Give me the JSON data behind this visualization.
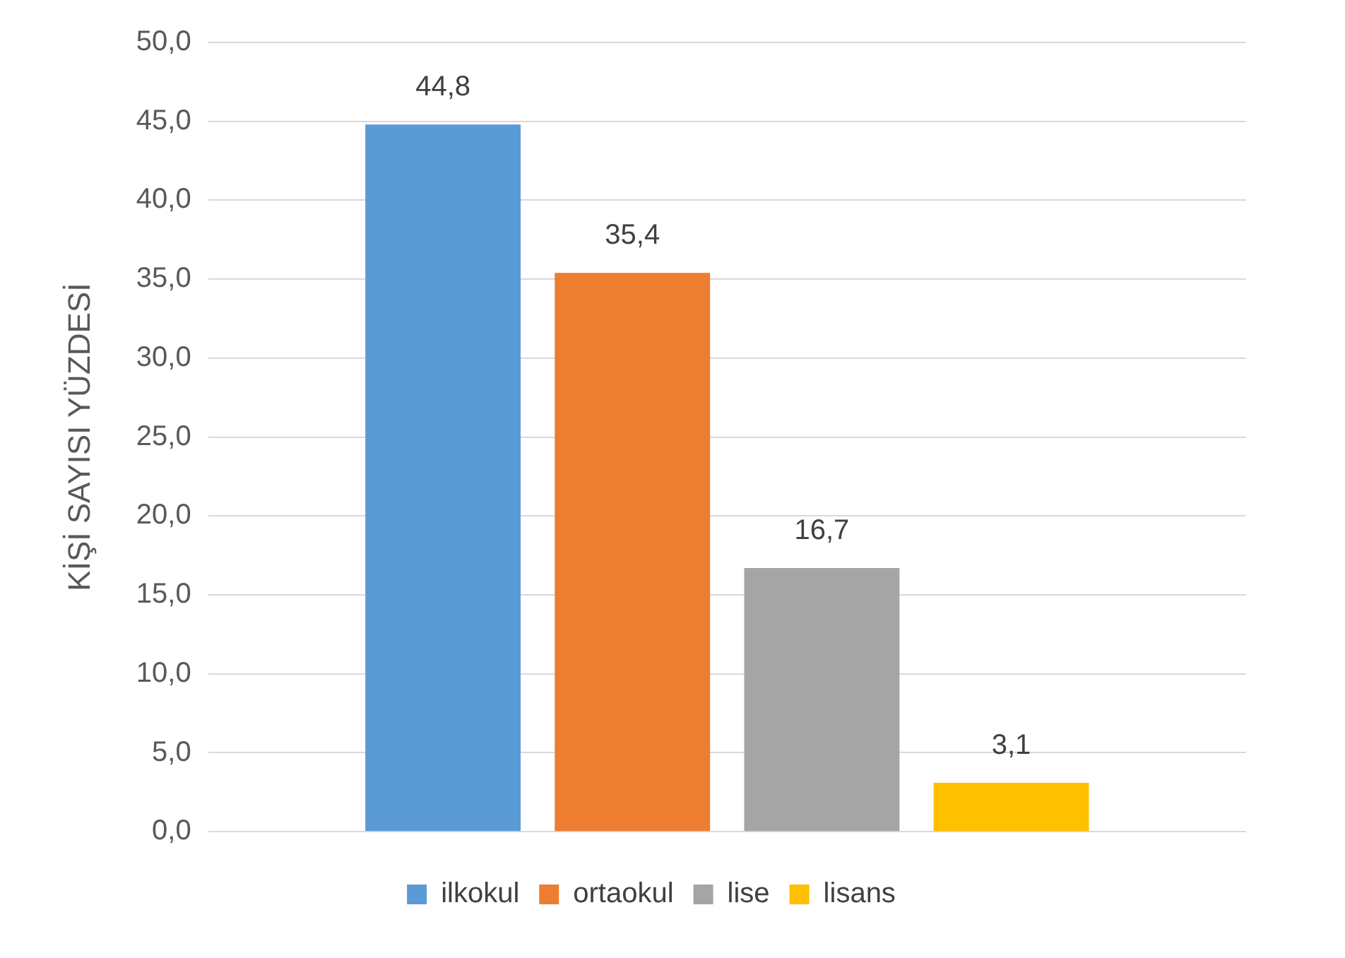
{
  "chart_data": {
    "type": "bar",
    "ylabel": "KİŞİ SAYISI YÜZDESİ",
    "categories": [
      null
    ],
    "series": [
      {
        "name": "ilkokul",
        "color": "#5b9bd5",
        "values": [
          44.8
        ],
        "value_labels": [
          "44,8"
        ]
      },
      {
        "name": "ortaokul",
        "color": "#ed7d31",
        "values": [
          35.4
        ],
        "value_labels": [
          "35,4"
        ]
      },
      {
        "name": "lise",
        "color": "#a5a5a5",
        "values": [
          16.7
        ],
        "value_labels": [
          "16,7"
        ]
      },
      {
        "name": "lisans",
        "color": "#ffc000",
        "values": [
          3.1
        ],
        "value_labels": [
          "3,1"
        ]
      }
    ],
    "ylim": [
      0,
      50
    ],
    "yticks": [
      {
        "value": 0,
        "label": "0,0"
      },
      {
        "value": 5,
        "label": "5,0"
      },
      {
        "value": 10,
        "label": "10,0"
      },
      {
        "value": 15,
        "label": "15,0"
      },
      {
        "value": 20,
        "label": "20,0"
      },
      {
        "value": 25,
        "label": "25,0"
      },
      {
        "value": 30,
        "label": "30,0"
      },
      {
        "value": 35,
        "label": "35,0"
      },
      {
        "value": 40,
        "label": "40,0"
      },
      {
        "value": 45,
        "label": "45,0"
      },
      {
        "value": 50,
        "label": "50,0"
      }
    ],
    "grid": "y",
    "legend": "bottom"
  }
}
